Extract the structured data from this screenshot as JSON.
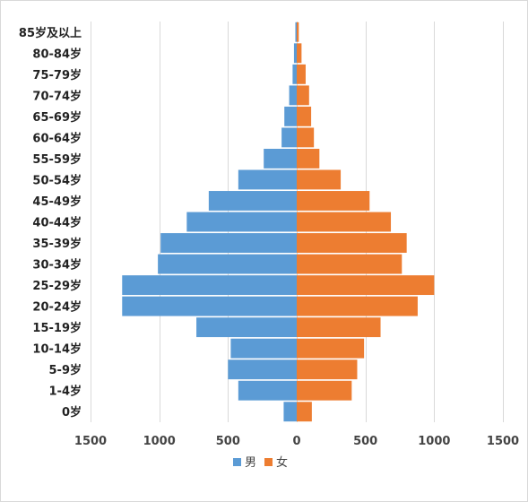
{
  "chart_data": {
    "type": "bar",
    "orientation": "horizontal",
    "layout": "population-pyramid",
    "categories": [
      "0岁",
      "1-4岁",
      "5-9岁",
      "10-14岁",
      "15-19岁",
      "20-24岁",
      "25-29岁",
      "30-34岁",
      "35-39岁",
      "40-44岁",
      "45-49岁",
      "50-54岁",
      "55-59岁",
      "60-64岁",
      "65-69岁",
      "70-74岁",
      "75-79岁",
      "80-84岁",
      "85岁及以上"
    ],
    "series": [
      {
        "name": "男",
        "color": "#5b9bd5",
        "side": "left",
        "values": [
          95,
          425,
          500,
          480,
          730,
          1270,
          1270,
          1010,
          990,
          800,
          640,
          425,
          240,
          110,
          90,
          55,
          30,
          20,
          10
        ]
      },
      {
        "name": "女",
        "color": "#ed7d31",
        "side": "right",
        "values": [
          110,
          400,
          440,
          490,
          610,
          880,
          1000,
          765,
          800,
          685,
          530,
          320,
          165,
          125,
          105,
          90,
          65,
          35,
          15
        ]
      }
    ],
    "xlim": [
      -1500,
      1500
    ],
    "xticks": [
      -1500,
      -1000,
      -500,
      0,
      500,
      1000,
      1500
    ],
    "xtick_labels": [
      "1500",
      "1000",
      "500",
      "0",
      "500",
      "1000",
      "1500"
    ],
    "grid": "vertical",
    "legend_position": "bottom",
    "title": "",
    "xlabel": "",
    "ylabel": ""
  }
}
